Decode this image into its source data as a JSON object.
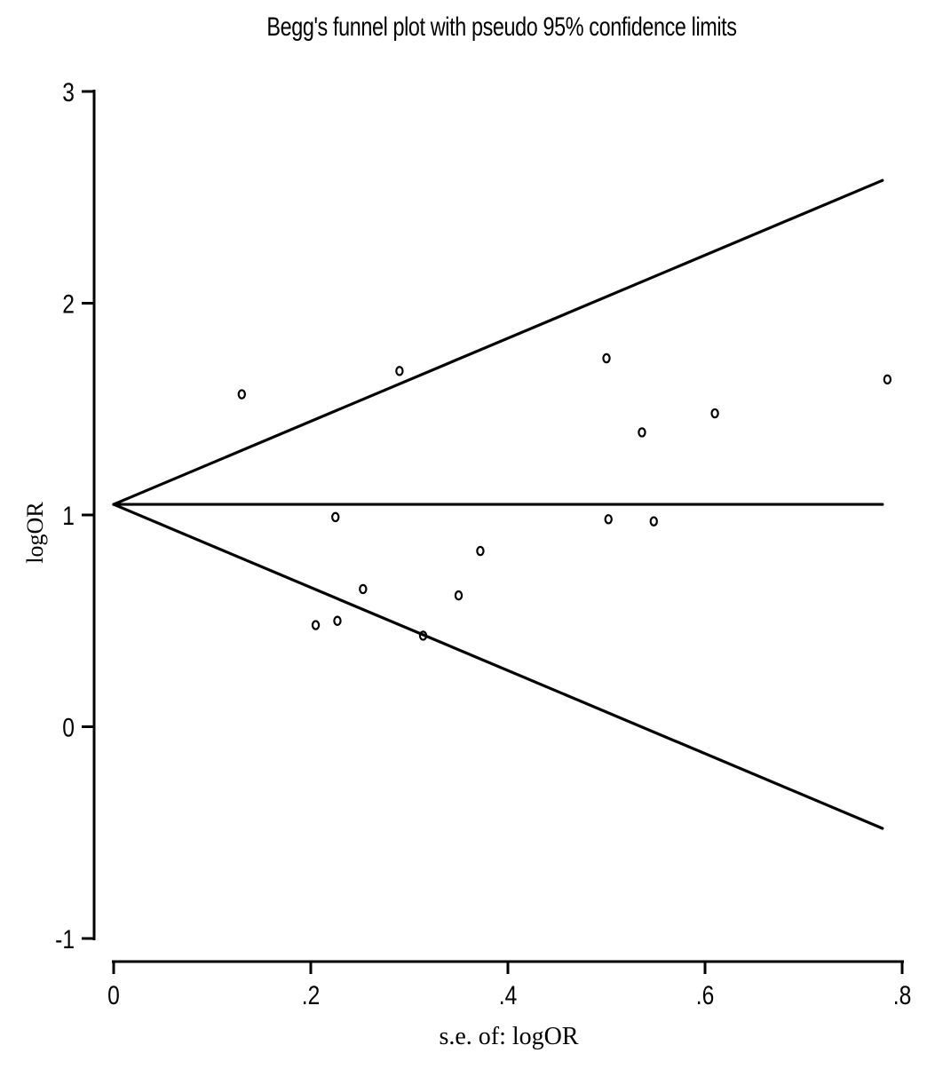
{
  "chart_data": {
    "type": "scatter",
    "title": "Begg's funnel plot with pseudo 95% confidence limits",
    "xlabel": "s.e. of: logOR",
    "ylabel": "logOR",
    "xlim": [
      0,
      0.8
    ],
    "ylim": [
      -1,
      3
    ],
    "x_ticks": [
      0,
      0.2,
      0.4,
      0.6,
      0.8
    ],
    "x_tick_labels": [
      "0",
      ".2",
      ".4",
      ".6",
      ".8"
    ],
    "y_ticks": [
      -1,
      0,
      1,
      2,
      3
    ],
    "y_tick_labels": [
      "-1",
      "0",
      "1",
      "2",
      "3"
    ],
    "grid": false,
    "legend": "none",
    "pooled_estimate": 1.05,
    "funnel_max_se": 0.78,
    "lines": [
      {
        "role": "upper-limit",
        "x": [
          0,
          0.78
        ],
        "y": [
          1.05,
          2.58
        ]
      },
      {
        "role": "pooled-estimate",
        "x": [
          0,
          0.78
        ],
        "y": [
          1.05,
          1.05
        ]
      },
      {
        "role": "lower-limit",
        "x": [
          0,
          0.78
        ],
        "y": [
          1.05,
          -0.48
        ]
      }
    ],
    "points": [
      {
        "x": 0.13,
        "y": 1.57
      },
      {
        "x": 0.205,
        "y": 0.48
      },
      {
        "x": 0.225,
        "y": 0.99
      },
      {
        "x": 0.227,
        "y": 0.5
      },
      {
        "x": 0.253,
        "y": 0.65
      },
      {
        "x": 0.29,
        "y": 1.68
      },
      {
        "x": 0.314,
        "y": 0.43
      },
      {
        "x": 0.35,
        "y": 0.62
      },
      {
        "x": 0.372,
        "y": 0.83
      },
      {
        "x": 0.5,
        "y": 1.74
      },
      {
        "x": 0.502,
        "y": 0.98
      },
      {
        "x": 0.536,
        "y": 1.39
      },
      {
        "x": 0.548,
        "y": 0.97
      },
      {
        "x": 0.61,
        "y": 1.48
      },
      {
        "x": 0.785,
        "y": 1.64
      }
    ]
  }
}
